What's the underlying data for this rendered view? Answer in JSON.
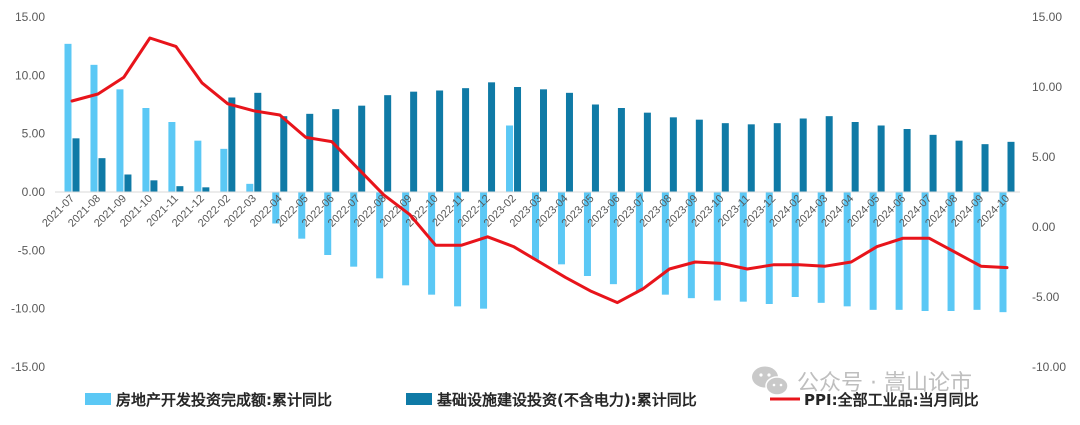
{
  "chart_data": {
    "type": "bar",
    "categories": [
      "2021-07",
      "2021-08",
      "2021-09",
      "2021-10",
      "2021-11",
      "2021-12",
      "2022-02",
      "2022-03",
      "2022-04",
      "2022-05",
      "2022-06",
      "2022-07",
      "2022-08",
      "2022-09",
      "2022-10",
      "2022-11",
      "2022-12",
      "2023-02",
      "2023-03",
      "2023-04",
      "2023-05",
      "2023-06",
      "2023-07",
      "2023-08",
      "2023-09",
      "2023-10",
      "2023-11",
      "2023-12",
      "2024-02",
      "2024-03",
      "2024-04",
      "2024-05",
      "2024-06",
      "2024-07",
      "2024-08",
      "2024-09",
      "2024-10"
    ],
    "series": [
      {
        "name": "房地产开发投资完成额:累计同比",
        "type": "bar",
        "axis": "left",
        "color": "#5bc8f5",
        "values": [
          12.7,
          10.9,
          8.8,
          7.2,
          6.0,
          4.4,
          3.7,
          0.7,
          -2.7,
          -4.0,
          -5.4,
          -6.4,
          -7.4,
          -8.0,
          -8.8,
          -9.8,
          -10.0,
          5.7,
          -5.8,
          -6.2,
          -7.2,
          -7.9,
          -8.5,
          -8.8,
          -9.1,
          -9.3,
          -9.4,
          -9.6,
          -9.0,
          -9.5,
          -9.8,
          -10.1,
          -10.1,
          -10.2,
          -10.2,
          -10.1,
          -10.3
        ]
      },
      {
        "name": "基础设施建设投资(不含电力):累计同比",
        "type": "bar",
        "axis": "left",
        "color": "#0f7aa6",
        "values": [
          4.6,
          2.9,
          1.5,
          1.0,
          0.5,
          0.4,
          8.1,
          8.5,
          6.5,
          6.7,
          7.1,
          7.4,
          8.3,
          8.6,
          8.7,
          8.9,
          9.4,
          9.0,
          8.8,
          8.5,
          7.5,
          7.2,
          6.8,
          6.4,
          6.2,
          5.9,
          5.8,
          5.9,
          6.3,
          6.5,
          6.0,
          5.7,
          5.4,
          4.9,
          4.4,
          4.1,
          4.3
        ]
      },
      {
        "name": "PPI:全部工业品:当月同比",
        "type": "line",
        "axis": "right",
        "color": "#e8141b",
        "values": [
          9.0,
          9.5,
          10.7,
          13.5,
          12.9,
          10.3,
          8.8,
          8.3,
          8.0,
          6.4,
          6.1,
          4.2,
          2.3,
          0.9,
          -1.3,
          -1.3,
          -0.7,
          -1.4,
          -2.5,
          -3.6,
          -4.6,
          -5.4,
          -4.4,
          -3.0,
          -2.5,
          -2.6,
          -3.0,
          -2.7,
          -2.7,
          -2.8,
          -2.5,
          -1.4,
          -0.8,
          -0.8,
          -1.8,
          -2.8,
          -2.9
        ]
      }
    ],
    "y_left": {
      "ylim": [
        -15,
        15
      ],
      "ticks": [
        "-15.00",
        "-10.00",
        "-5.00",
        "0.00",
        "5.00",
        "10.00",
        "15.00"
      ]
    },
    "y_right": {
      "ylim": [
        -10,
        15
      ],
      "ticks": [
        "-10.00",
        "-5.00",
        "0.00",
        "5.00",
        "10.00",
        "15.00"
      ]
    },
    "title": "",
    "xlabel": "",
    "ylabel": "",
    "grid": false,
    "legend_position": "bottom"
  },
  "legend": {
    "items": [
      "房地产开发投资完成额:累计同比",
      "基础设施建设投资(不含电力):累计同比",
      "PPI:全部工业品:当月同比"
    ]
  },
  "watermark": {
    "text": "公众号 · 嵩山论市",
    "icon": "wechat-icon"
  }
}
